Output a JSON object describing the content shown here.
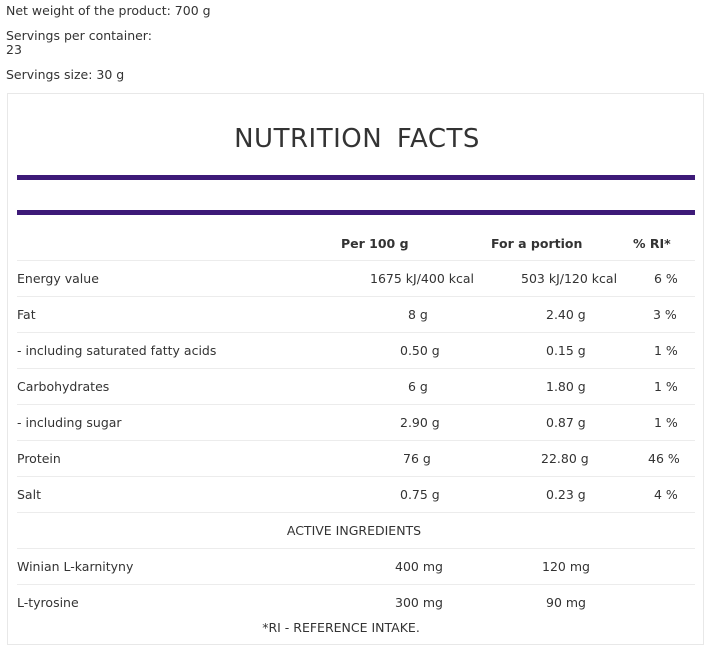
{
  "meta": {
    "net_weight": "Net weight of the product: 700 g",
    "servings_label": "Servings per container:",
    "servings_value": "23",
    "serving_size": "Servings size:  30 g"
  },
  "title": "NUTRITION  FACTS",
  "colors": {
    "accent_bar": "#3d1a78",
    "divider": "#ececec",
    "text": "#333333"
  },
  "table": {
    "headers": {
      "per100": "Per 100 g",
      "portion": "For a portion",
      "ri": "% RI*"
    },
    "rows": [
      {
        "name": "Energy value",
        "per100": "1675 kJ/400 kcal",
        "portion": "503 kJ/120 kcal",
        "ri": "6 %"
      },
      {
        "name": "Fat",
        "per100": "8 g",
        "portion": "2.40 g",
        "ri": "3 %"
      },
      {
        "name": " - including saturated fatty acids",
        "per100": "0.50 g",
        "portion": "0.15 g",
        "ri": "1 %"
      },
      {
        "name": "Carbohydrates",
        "per100": "6 g",
        "portion": "1.80 g",
        "ri": "1 %"
      },
      {
        "name": " - including sugar",
        "per100": "2.90 g",
        "portion": "0.87 g",
        "ri": "1 %"
      },
      {
        "name": "Protein",
        "per100": "76 g",
        "portion": "22.80 g",
        "ri": "46 %"
      },
      {
        "name": "Salt",
        "per100": "0.75 g",
        "portion": "0.23 g",
        "ri": "4 %"
      }
    ],
    "section_title": "ACTIVE INGREDIENTS",
    "active": [
      {
        "name": "Winian L-karnityny",
        "per100": "400 mg",
        "portion": "120 mg"
      },
      {
        "name": "L-tyrosine",
        "per100": "300 mg",
        "portion": "90 mg"
      }
    ],
    "footnote": "*RI - REFERENCE INTAKE."
  }
}
